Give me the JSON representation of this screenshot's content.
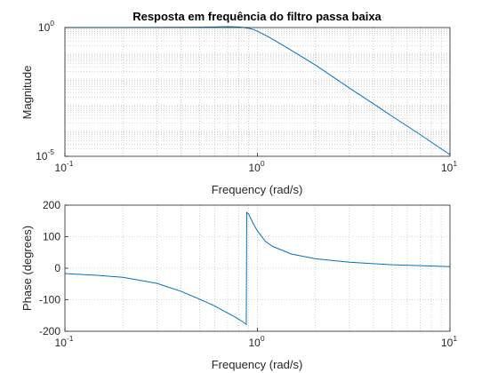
{
  "colors": {
    "line": "#0072BD",
    "axis": "#262626",
    "grid": "#b0b0b0",
    "background": "#ffffff"
  },
  "chart_data": [
    {
      "type": "line",
      "title": "Resposta em frequência do filtro passa baixa",
      "xlabel": "Frequency (rad/s)",
      "ylabel": "Magnitude",
      "xscale": "log",
      "yscale": "log",
      "xlim": [
        0.1,
        10
      ],
      "ylim": [
        1e-05,
        1
      ],
      "x_ticks": [
        {
          "base": "10",
          "exp": "-1"
        },
        {
          "base": "10",
          "exp": "0"
        },
        {
          "base": "10",
          "exp": "1"
        }
      ],
      "y_ticks": [
        {
          "base": "10",
          "exp": "0"
        },
        {
          "base": "10",
          "exp": "-5"
        }
      ],
      "grid": true,
      "series": [
        {
          "x": [
            0.1,
            0.2,
            0.3,
            0.4,
            0.5,
            0.6,
            0.7,
            0.8,
            0.85,
            0.9,
            0.95,
            1.0,
            1.1,
            1.2,
            1.5,
            2,
            3,
            4,
            5,
            7,
            10
          ],
          "y": [
            1.0,
            1.0,
            1.01,
            1.02,
            1.03,
            1.05,
            1.08,
            1.05,
            1.0,
            0.93,
            0.85,
            0.72,
            0.5,
            0.35,
            0.13,
            0.035,
            0.0045,
            0.0011,
            0.00036,
            7e-05,
            1.15e-05
          ]
        }
      ]
    },
    {
      "type": "line",
      "title": "",
      "xlabel": "Frequency (rad/s)",
      "ylabel": "Phase (degrees)",
      "xscale": "log",
      "yscale": "linear",
      "xlim": [
        0.1,
        10
      ],
      "ylim": [
        -200,
        200
      ],
      "x_ticks": [
        {
          "base": "10",
          "exp": "-1"
        },
        {
          "base": "10",
          "exp": "0"
        },
        {
          "base": "10",
          "exp": "1"
        }
      ],
      "y_ticks": [
        "200",
        "100",
        "0",
        "-100",
        "-200"
      ],
      "grid": true,
      "series": [
        {
          "x": [
            0.1,
            0.15,
            0.2,
            0.3,
            0.4,
            0.5,
            0.6,
            0.7,
            0.75,
            0.8,
            0.84,
            0.86,
            0.87,
            0.875,
            0.88,
            0.9,
            0.95,
            1.0,
            1.1,
            1.2,
            1.5,
            2,
            3,
            5,
            7,
            10
          ],
          "y": [
            -17,
            -23,
            -29,
            -48,
            -73,
            -98,
            -120,
            -142,
            -152,
            -162,
            -170,
            -175,
            -177,
            -178,
            177,
            172,
            142,
            118,
            85,
            69,
            45,
            30,
            19,
            11,
            8,
            5
          ]
        }
      ]
    }
  ]
}
